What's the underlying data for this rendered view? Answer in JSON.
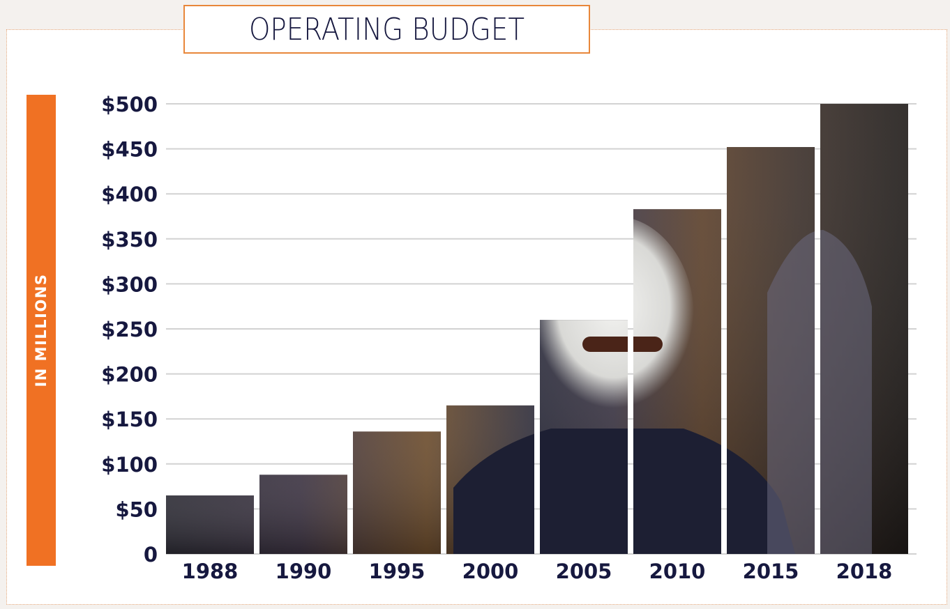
{
  "header": {
    "title": "OPERATING BUDGET"
  },
  "colors": {
    "accent": "#f07123",
    "title_border": "#e8873a",
    "text": "#16183f",
    "grid": "#d2d2d2",
    "bar_fill": "#2a211d"
  },
  "chart_data": {
    "type": "bar",
    "title": "OPERATING BUDGET",
    "ylabel": "IN MILLIONS",
    "xlabel": "",
    "categories": [
      "1988",
      "1990",
      "1995",
      "2000",
      "2005",
      "2010",
      "2015",
      "2018"
    ],
    "values": [
      65,
      88,
      136,
      165,
      260,
      383,
      452,
      500
    ],
    "ylim": [
      0,
      500
    ],
    "yticks": [
      0,
      50,
      100,
      150,
      200,
      250,
      300,
      350,
      400,
      450,
      500
    ],
    "ytick_labels": [
      "0",
      "$50",
      "$100",
      "$150",
      "$200",
      "$250",
      "$300",
      "$350",
      "$400",
      "$450",
      "$500"
    ],
    "grid": true,
    "legend": "none",
    "bar_style": "photo-filled"
  }
}
